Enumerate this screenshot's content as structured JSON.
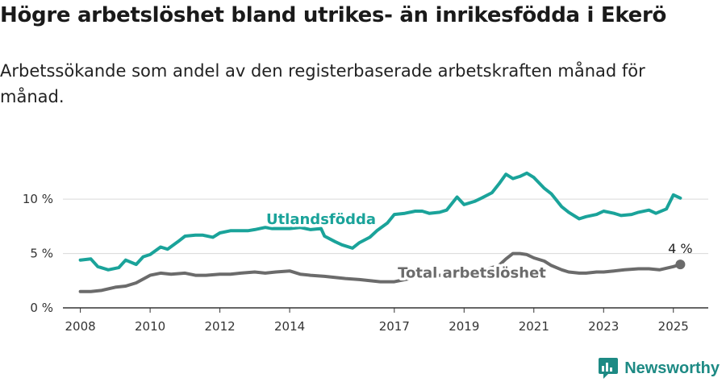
{
  "title": "Högre arbetslöshet bland utrikes- än inrikesfödda i Ekerö",
  "subtitle": "Arbetssökande som andel av den registerbaserade arbetskraften månad för månad.",
  "brand": {
    "name": "Newsworthy"
  },
  "colors": {
    "foreign": "#1aa39a",
    "total": "#6b6b6b",
    "grid": "#d9d9d9",
    "axis": "#333333"
  },
  "chart_data": {
    "type": "line",
    "x_ticks": [
      "2008",
      "2010",
      "2012",
      "2014",
      "2017",
      "2019",
      "2021",
      "2023",
      "2025"
    ],
    "y_ticks": [
      "0 %",
      "5 %",
      "10 %"
    ],
    "ylim": [
      0,
      13.5
    ],
    "xlim": [
      2007.5,
      2026.0
    ],
    "grid": "horizontal",
    "series": [
      {
        "name": "Utlandsfödda",
        "x": [
          2008.0,
          2008.3,
          2008.5,
          2008.8,
          2009.1,
          2009.3,
          2009.6,
          2009.8,
          2010.0,
          2010.3,
          2010.5,
          2010.8,
          2011.0,
          2011.3,
          2011.5,
          2011.8,
          2012.0,
          2012.3,
          2012.5,
          2012.8,
          2013.0,
          2013.3,
          2013.5,
          2013.8,
          2014.0,
          2014.3,
          2014.6,
          2014.9,
          2015.0,
          2015.3,
          2015.5,
          2015.8,
          2016.0,
          2016.3,
          2016.5,
          2016.8,
          2017.0,
          2017.3,
          2017.6,
          2017.8,
          2018.0,
          2018.3,
          2018.5,
          2018.8,
          2019.0,
          2019.3,
          2019.5,
          2019.8,
          2020.0,
          2020.2,
          2020.4,
          2020.6,
          2020.8,
          2021.0,
          2021.3,
          2021.5,
          2021.8,
          2022.0,
          2022.3,
          2022.5,
          2022.8,
          2023.0,
          2023.3,
          2023.5,
          2023.8,
          2024.0,
          2024.3,
          2024.5,
          2024.8,
          2025.0,
          2025.2
        ],
        "values": [
          4.4,
          4.5,
          3.8,
          3.5,
          3.7,
          4.4,
          4.0,
          4.7,
          4.9,
          5.6,
          5.4,
          6.1,
          6.6,
          6.7,
          6.7,
          6.5,
          6.9,
          7.1,
          7.1,
          7.1,
          7.2,
          7.4,
          7.3,
          7.3,
          7.3,
          7.4,
          7.2,
          7.3,
          6.6,
          6.1,
          5.8,
          5.5,
          6.0,
          6.5,
          7.1,
          7.8,
          8.6,
          8.7,
          8.9,
          8.9,
          8.7,
          8.8,
          9.0,
          10.2,
          9.5,
          9.8,
          10.1,
          10.6,
          11.4,
          12.3,
          11.9,
          12.1,
          12.4,
          12.0,
          11.0,
          10.5,
          9.3,
          8.8,
          8.2,
          8.4,
          8.6,
          8.9,
          8.7,
          8.5,
          8.6,
          8.8,
          9.0,
          8.7,
          9.1,
          10.4,
          10.1
        ]
      },
      {
        "name": "Total arbetslöshet",
        "x": [
          2008.0,
          2008.3,
          2008.6,
          2009.0,
          2009.3,
          2009.6,
          2010.0,
          2010.3,
          2010.6,
          2011.0,
          2011.3,
          2011.6,
          2012.0,
          2012.3,
          2012.6,
          2013.0,
          2013.3,
          2013.6,
          2014.0,
          2014.3,
          2014.6,
          2015.0,
          2015.3,
          2015.6,
          2016.0,
          2016.3,
          2016.6,
          2017.0,
          2017.3,
          2017.6,
          2018.0,
          2018.3,
          2018.6,
          2019.0,
          2019.3,
          2019.6,
          2020.0,
          2020.2,
          2020.4,
          2020.6,
          2020.8,
          2021.0,
          2021.3,
          2021.5,
          2021.8,
          2022.0,
          2022.3,
          2022.5,
          2022.8,
          2023.0,
          2023.3,
          2023.6,
          2024.0,
          2024.3,
          2024.6,
          2025.0,
          2025.2
        ],
        "values": [
          1.5,
          1.5,
          1.6,
          1.9,
          2.0,
          2.3,
          3.0,
          3.2,
          3.1,
          3.2,
          3.0,
          3.0,
          3.1,
          3.1,
          3.2,
          3.3,
          3.2,
          3.3,
          3.4,
          3.1,
          3.0,
          2.9,
          2.8,
          2.7,
          2.6,
          2.5,
          2.4,
          2.4,
          2.6,
          2.8,
          2.9,
          3.0,
          3.1,
          3.3,
          3.4,
          3.5,
          3.9,
          4.5,
          5.0,
          5.0,
          4.9,
          4.6,
          4.3,
          3.9,
          3.5,
          3.3,
          3.2,
          3.2,
          3.3,
          3.3,
          3.4,
          3.5,
          3.6,
          3.6,
          3.5,
          3.8,
          4.0
        ]
      }
    ],
    "labels": {
      "foreign": "Utlandsfödda",
      "total": "Total arbetslöshet",
      "end_value": "4 %"
    }
  }
}
